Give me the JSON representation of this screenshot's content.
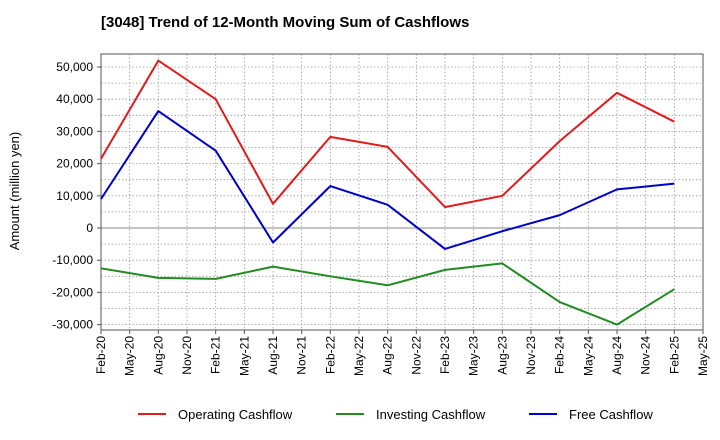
{
  "chart_data": {
    "type": "line",
    "title": "[3048]  Trend of 12-Month Moving Sum of Cashflows",
    "ylabel": "Amount (million yen)",
    "xlabel": "",
    "categories": [
      "Feb-20",
      "May-20",
      "Aug-20",
      "Nov-20",
      "Feb-21",
      "May-21",
      "Aug-21",
      "Nov-21",
      "Feb-22",
      "May-22",
      "Aug-22",
      "Nov-22",
      "Feb-23",
      "May-23",
      "Aug-23",
      "Nov-23",
      "Feb-24",
      "May-24",
      "Aug-24",
      "Nov-24",
      "Feb-25",
      "May-25"
    ],
    "ylim": [
      -32000,
      55000
    ],
    "yticks": [
      50000,
      40000,
      30000,
      20000,
      10000,
      0,
      -10000,
      -20000,
      -30000
    ],
    "ytick_labels": [
      "50,000",
      "40,000",
      "30,000",
      "20,000",
      "10,000",
      "0",
      "-10,000",
      "-20,000",
      "-30,000"
    ],
    "grid": true,
    "legend_position": "bottom",
    "series": [
      {
        "name": "Operating Cashflow",
        "color": "#e31a1c",
        "points": [
          [
            "Feb-20",
            21500
          ],
          [
            "Aug-20",
            52000
          ],
          [
            "Feb-21",
            40000
          ],
          [
            "Aug-21",
            7500
          ],
          [
            "Feb-22",
            28300
          ],
          [
            "Aug-22",
            25200
          ],
          [
            "Feb-23",
            6500
          ],
          [
            "Aug-23",
            10000
          ],
          [
            "Feb-24",
            27000
          ],
          [
            "Aug-24",
            42000
          ],
          [
            "Feb-25",
            33000
          ]
        ]
      },
      {
        "name": "Investing Cashflow",
        "color": "#228b22",
        "points": [
          [
            "Feb-20",
            -12500
          ],
          [
            "Aug-20",
            -15500
          ],
          [
            "Feb-21",
            -15800
          ],
          [
            "Aug-21",
            -12000
          ],
          [
            "Feb-22",
            -15000
          ],
          [
            "Aug-22",
            -17800
          ],
          [
            "Feb-23",
            -13000
          ],
          [
            "Aug-23",
            -11000
          ],
          [
            "Feb-24",
            -23000
          ],
          [
            "Aug-24",
            -30000
          ],
          [
            "Feb-25",
            -19000
          ]
        ]
      },
      {
        "name": "Free Cashflow",
        "color": "#0000cc",
        "points": [
          [
            "Feb-20",
            9000
          ],
          [
            "Aug-20",
            36300
          ],
          [
            "Feb-21",
            24000
          ],
          [
            "Aug-21",
            -4500
          ],
          [
            "Feb-22",
            13000
          ],
          [
            "Aug-22",
            7200
          ],
          [
            "Feb-23",
            -6500
          ],
          [
            "Aug-23",
            -1000
          ],
          [
            "Feb-24",
            4000
          ],
          [
            "Aug-24",
            12000
          ],
          [
            "Feb-25",
            13800
          ]
        ]
      }
    ]
  }
}
